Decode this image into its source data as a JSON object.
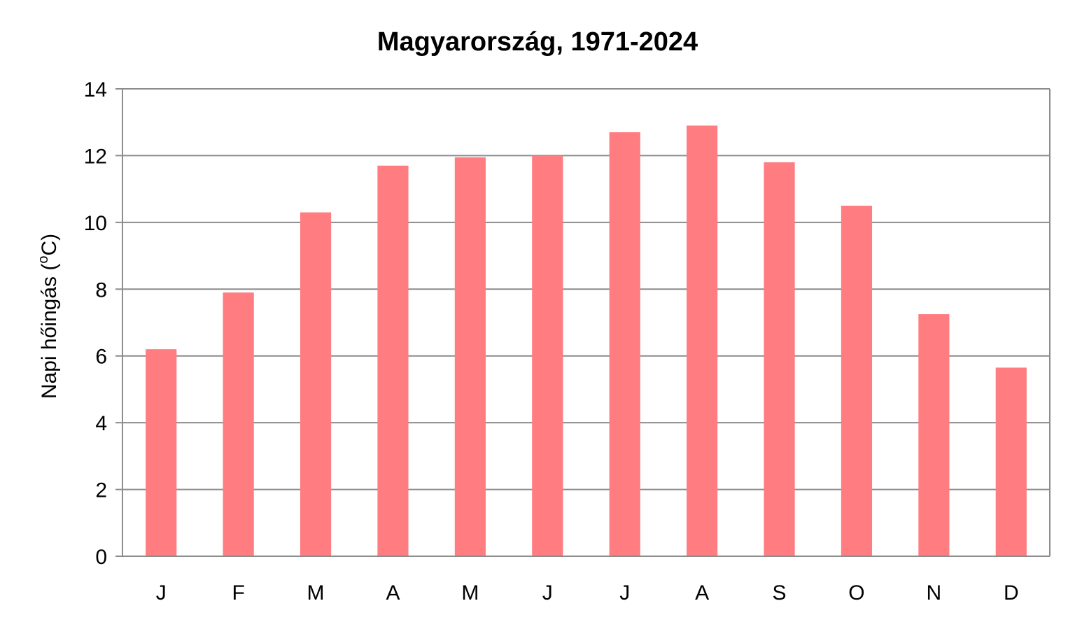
{
  "chart_data": {
    "type": "bar",
    "title": "Magyarország, 1971-2024",
    "ylabel_prefix": "Napi hőingás (",
    "ylabel_degree": "o",
    "ylabel_suffix": "C)",
    "xlabel": "",
    "categories": [
      "J",
      "F",
      "M",
      "A",
      "M",
      "J",
      "J",
      "A",
      "S",
      "O",
      "N",
      "D"
    ],
    "values": [
      6.2,
      7.9,
      10.3,
      11.7,
      11.95,
      12.0,
      12.7,
      12.9,
      11.8,
      10.5,
      7.25,
      5.65
    ],
    "ylim": [
      0,
      14
    ],
    "yticks": [
      "0",
      "2",
      "4",
      "6",
      "8",
      "10",
      "12",
      "14"
    ],
    "grid": true,
    "bar_color": "#ff7c80",
    "grid_color": "#8c8c8c"
  }
}
